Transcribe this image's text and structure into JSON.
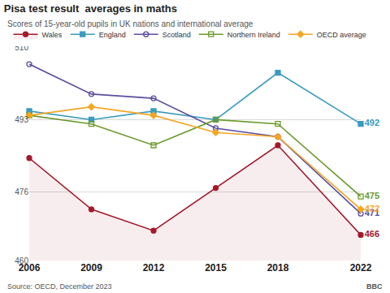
{
  "chart_data": {
    "type": "line",
    "title": "Pisa test result  averages in maths",
    "subtitle": "Scores of 15-year-old pupils in UK nations and international average",
    "source": "Source: OECD, December 2023",
    "credit": "BBC",
    "x": [
      2006,
      2009,
      2012,
      2015,
      2018,
      2022
    ],
    "xlim": [
      2006,
      2022
    ],
    "xticks": [
      2006,
      2009,
      2012,
      2015,
      2018,
      2022
    ],
    "ylim": [
      460,
      510
    ],
    "yticks": [
      460,
      476,
      493,
      510
    ],
    "grid": true,
    "legend": "top",
    "data_labels": true,
    "series": [
      {
        "name": "Wales",
        "color": "#a3192b",
        "marker": "circle",
        "type": "area",
        "values": [
          484,
          472,
          467,
          477,
          487,
          466
        ],
        "value_labels": [
          null,
          null,
          null,
          null,
          null,
          "466"
        ]
      },
      {
        "name": "England",
        "color": "#3a9bbf",
        "marker": "square",
        "type": "line",
        "values": [
          495,
          493,
          495,
          493,
          504,
          492
        ],
        "value_labels": [
          null,
          null,
          null,
          null,
          null,
          "492"
        ]
      },
      {
        "name": "Scotland",
        "color": "#5b4e9e",
        "marker": "circle-open",
        "type": "line",
        "values": [
          506,
          499,
          498,
          491,
          489,
          471
        ],
        "value_labels": [
          null,
          null,
          null,
          null,
          null,
          "471"
        ]
      },
      {
        "name": "Northern Ireland",
        "color": "#6b9a2b",
        "marker": "square-open",
        "type": "line",
        "values": [
          494,
          492,
          487,
          493,
          492,
          475
        ],
        "value_labels": [
          null,
          null,
          null,
          null,
          null,
          "475"
        ]
      },
      {
        "name": "OECD average",
        "color": "#f5a623",
        "marker": "diamond",
        "type": "line",
        "values": [
          494,
          496,
          494,
          490,
          489,
          472
        ],
        "value_labels": [
          null,
          null,
          null,
          null,
          null,
          "472"
        ]
      }
    ]
  }
}
